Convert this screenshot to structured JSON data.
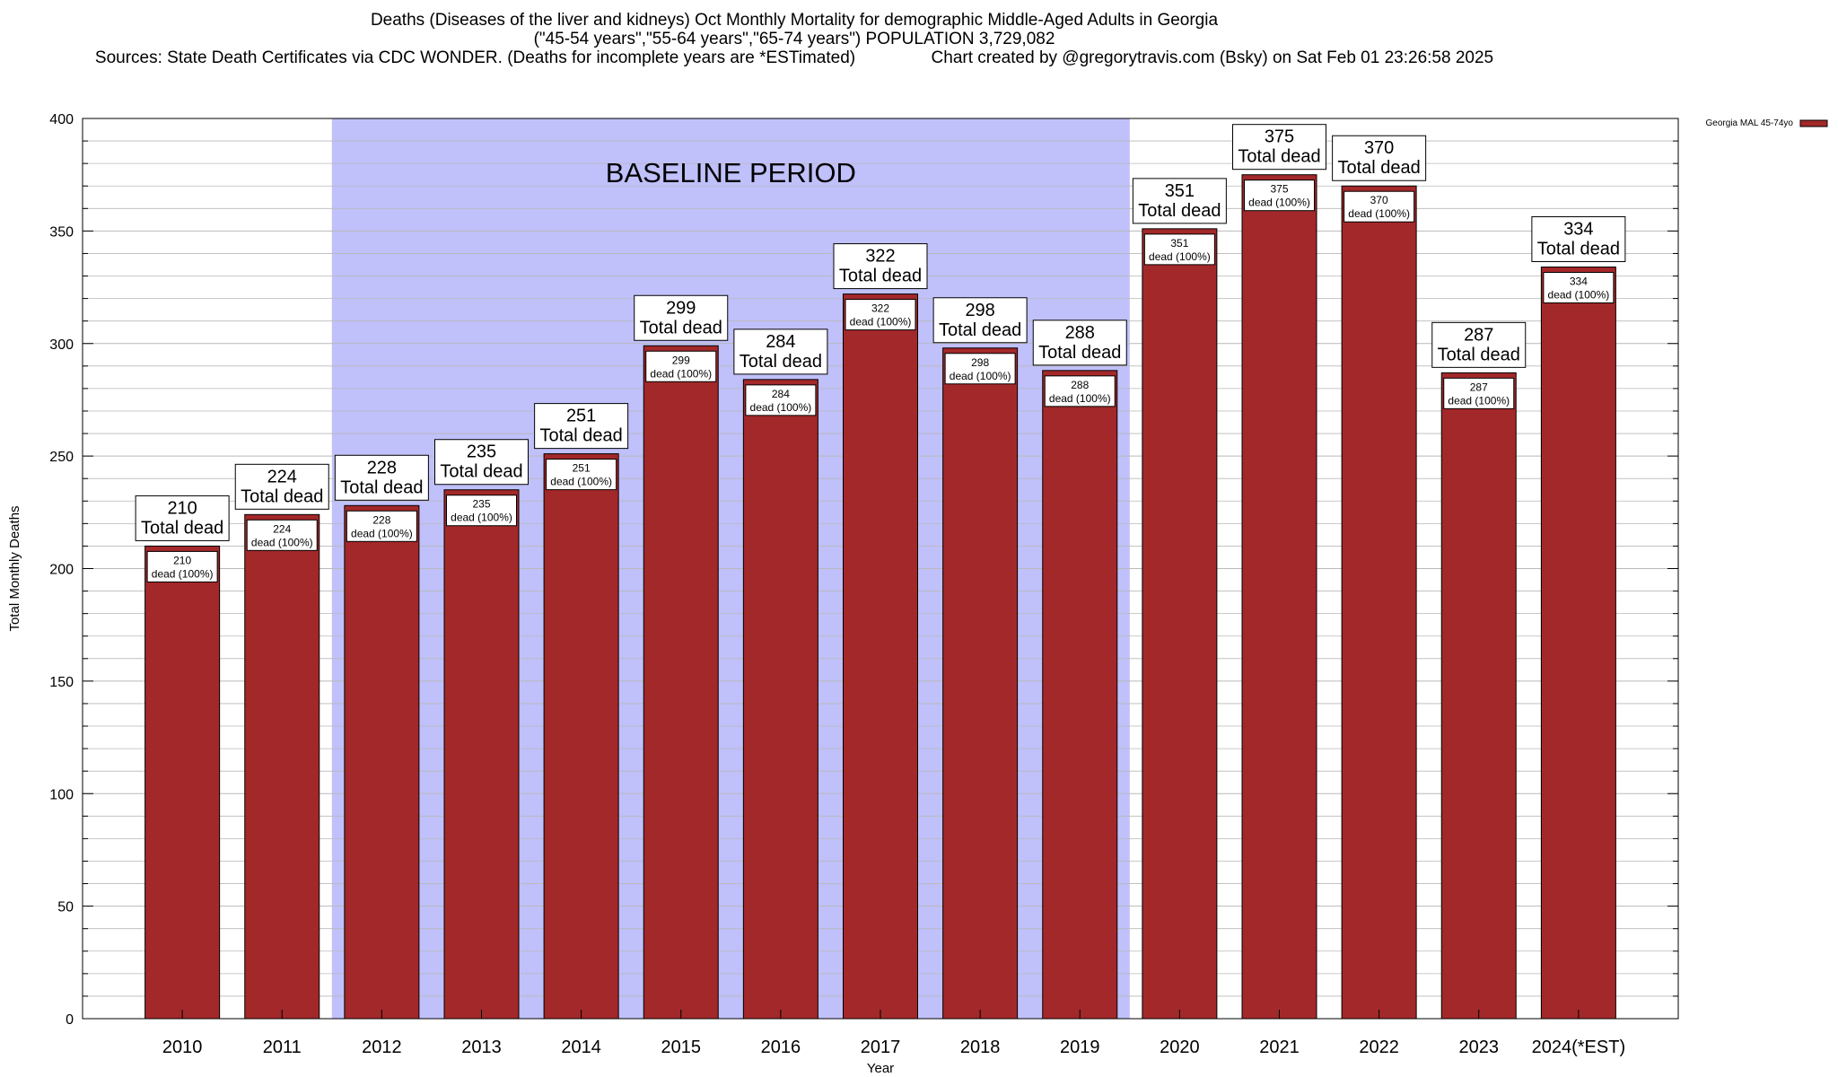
{
  "header": {
    "line1": "Deaths (Diseases of the liver and kidneys) Oct Monthly Mortality for demographic Middle-Aged Adults in Georgia",
    "line2": "(\"45-54 years\",\"55-64 years\",\"65-74 years\") POPULATION 3,729,082",
    "line3": "Sources: State Death Certificates via CDC WONDER. (Deaths for incomplete years are *ESTimated)                Chart created by @gregorytravis.com (Bsky) on Sat Feb 01 23:26:58 2025"
  },
  "colors": {
    "bar": "#a3282a",
    "bar_border": "#000000",
    "baseline_shade": "#c0c0fa",
    "grid": "#b9b9b9"
  },
  "chart_data": {
    "type": "bar",
    "title": "Deaths (Diseases of the liver and kidneys) Oct Monthly Mortality for demographic Middle-Aged Adults in Georgia",
    "xlabel": "Year",
    "ylabel": "Total Monthly Deaths",
    "ylim": [
      0,
      400
    ],
    "yticks": [
      0,
      50,
      100,
      150,
      200,
      250,
      300,
      350,
      400
    ],
    "minor_tick_step": 10,
    "grid": true,
    "legend": {
      "label": "Georgia MAL 45-74yo",
      "position": "top-right"
    },
    "baseline": {
      "label": "BASELINE PERIOD",
      "start": "2012",
      "end": "2019"
    },
    "total_label": "Total dead",
    "inner_label": "dead (100%)",
    "categories": [
      "2010",
      "2011",
      "2012",
      "2013",
      "2014",
      "2015",
      "2016",
      "2017",
      "2018",
      "2019",
      "2020",
      "2021",
      "2022",
      "2023",
      "2024(*EST)"
    ],
    "values": [
      210,
      224,
      228,
      235,
      251,
      299,
      284,
      322,
      298,
      288,
      351,
      375,
      370,
      287,
      334
    ]
  }
}
